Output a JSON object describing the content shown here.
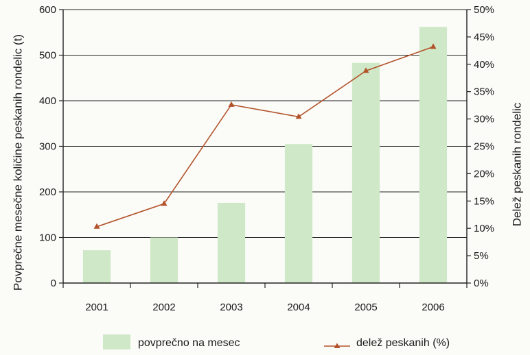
{
  "chart_data": {
    "type": "bar",
    "categories": [
      "2001",
      "2002",
      "2003",
      "2004",
      "2005",
      "2006"
    ],
    "series": [
      {
        "name": "povprečno na mesec",
        "type": "bar",
        "axis": "left",
        "values": [
          72,
          100,
          176,
          305,
          483,
          562
        ]
      },
      {
        "name": "delež peskanih (%)",
        "type": "line",
        "axis": "right",
        "values": [
          10.3,
          14.5,
          32.6,
          30.4,
          38.8,
          43.2
        ]
      }
    ],
    "ylabel": "Povprečne mesečne količine peskanih rondelic (t)",
    "y2label": "Delež peskanih rondelic",
    "ylim": [
      0,
      600
    ],
    "yticks": [
      "0",
      "100",
      "200",
      "300",
      "400",
      "500",
      "600"
    ],
    "y2lim": [
      0,
      50
    ],
    "y2ticks": [
      "0%",
      "5%",
      "10%",
      "15%",
      "20%",
      "25%",
      "30%",
      "35%",
      "40%",
      "45%",
      "50%"
    ],
    "grid": "horizontal",
    "legend": "bottom",
    "colors": {
      "bar": "#cfe9c8",
      "line": "#b3532a",
      "grid": "#222222",
      "axis": "#222222"
    }
  }
}
